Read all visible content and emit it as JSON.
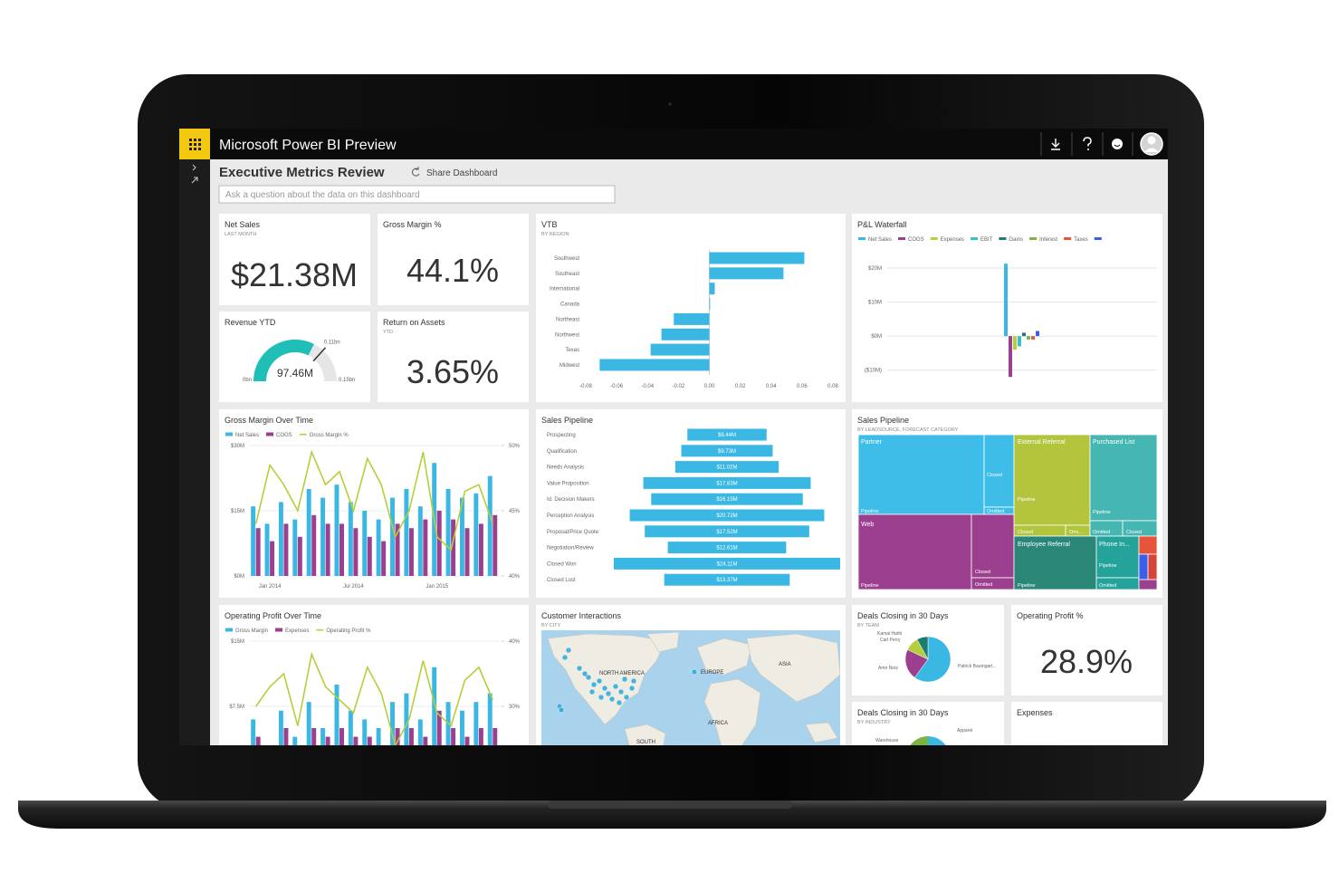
{
  "app": {
    "title": "Microsoft Power BI Preview"
  },
  "dashboard": {
    "title": "Executive Metrics Review",
    "share": "Share Dashboard",
    "question_placeholder": "Ask a question about the data on this dashboard"
  },
  "cards": [
    {
      "title": "Net Sales",
      "subtitle": "LAST MONTH",
      "value": "$21.38M"
    },
    {
      "title": "Gross Margin %",
      "value": "44.1%"
    },
    {
      "title": "Return on Assets",
      "subtitle": "YTD",
      "value": "3.65%"
    },
    {
      "title": "Operating Profit %",
      "value": "28.9%"
    },
    {
      "title": "Expenses"
    }
  ],
  "chart_data": [
    {
      "type": "bar",
      "orientation": "horizontal",
      "title": "VTB",
      "subtitle": "BY REGION",
      "categories": [
        "Southwest",
        "Southeast",
        "International",
        "Canada",
        "Northeast",
        "Northwest",
        "Texas",
        "Midwest"
      ],
      "values": [
        0.0615,
        0.048,
        0.0035,
        0.0005,
        -0.023,
        -0.031,
        -0.038,
        -0.071
      ],
      "color": "#3ab7e3",
      "xlim": [
        -0.08,
        0.08
      ],
      "xticks": [
        -0.08,
        -0.06,
        -0.04,
        -0.02,
        {
          "value": 0,
          "label": "0.00"
        },
        0.02,
        0.04,
        0.06,
        0.08
      ]
    },
    {
      "type": "column",
      "title": "P&L Waterfall",
      "categories": [
        "Net Sales",
        "COGS",
        "Expenses",
        "EBIT",
        "Gains",
        "Interest",
        "Taxes",
        null
      ],
      "values": [
        21.3,
        -12,
        -4,
        -3,
        1,
        -1,
        -1,
        1.5
      ],
      "colors": [
        "#3ab7e3",
        "#9b3f8e",
        "#b5cf3b",
        "#3bbfcf",
        "#1e7c6e",
        "#7cb341",
        "#e8543a",
        "#3b5de7"
      ],
      "ylim": [
        -13,
        24
      ],
      "grid": true,
      "yticks": [
        {
          "value": -10,
          "label": "($10M)"
        },
        {
          "value": 0,
          "label": "$0M"
        },
        {
          "value": 10,
          "label": "$10M"
        },
        {
          "value": 20,
          "label": "$20M"
        }
      ]
    },
    {
      "type": "combo",
      "title": "Gross Margin Over Time",
      "categories": [
        null,
        "Jan 2014",
        null,
        null,
        null,
        null,
        null,
        "Jul 2014",
        null,
        null,
        null,
        null,
        null,
        "Jan 2015",
        null,
        null,
        null,
        null
      ],
      "series": [
        {
          "name": "Net Sales",
          "type": "bar",
          "color": "#3ab7e3",
          "values": [
            16,
            12,
            17,
            13,
            20,
            18,
            21,
            17,
            15,
            13,
            18,
            20,
            16,
            26,
            20,
            18,
            19,
            23
          ]
        },
        {
          "name": "COGS",
          "type": "bar",
          "color": "#9b3f8e",
          "values": [
            11,
            8,
            12,
            9,
            14,
            12,
            12,
            11,
            9,
            8,
            12,
            11,
            13,
            15,
            13,
            11,
            12,
            14
          ]
        },
        {
          "name": "Gross Margin %",
          "type": "line",
          "axis": "y2",
          "color": "#b5cf3b",
          "values": [
            44,
            48.5,
            47,
            45,
            49.5,
            47,
            48,
            45,
            49,
            47,
            43,
            45,
            49.5,
            43,
            42,
            46.5,
            47,
            44
          ]
        }
      ],
      "ylim": [
        0,
        30
      ],
      "yticks": [
        {
          "value": 0,
          "label": "$0M"
        },
        {
          "value": 15,
          "label": "$15M"
        },
        {
          "value": 30,
          "label": "$30M"
        }
      ],
      "y2lim": [
        40,
        50
      ],
      "y2ticks": [
        {
          "value": 40,
          "label": "40%"
        },
        {
          "value": 45,
          "label": "45%"
        },
        {
          "value": 50,
          "label": "50%"
        }
      ]
    },
    {
      "type": "funnel",
      "title": "Sales Pipeline",
      "categories": [
        "Prospecting",
        "Qualification",
        "Needs Analysis",
        "Value Proposition",
        "Id. Decision Makers",
        "Perception Analysis",
        "Proposal/Price Quote",
        "Negotiation/Review",
        "Closed Won",
        "Closed Lost"
      ],
      "values": [
        8.44,
        9.73,
        11.02,
        17.83,
        16.15,
        20.72,
        17.52,
        12.61,
        24.11,
        13.37
      ],
      "value_labels": [
        "$8.44M",
        "$9.73M",
        "$11.02M",
        "$17.83M",
        "$16.15M",
        "$20.72M",
        "$17.52M",
        "$12.61M",
        "$24.11M",
        "$13.37M"
      ],
      "color": "#3ab7e3"
    },
    {
      "type": "combo",
      "title": "Operating Profit Over Time",
      "series": [
        {
          "name": "Gross Margin",
          "type": "bar",
          "color": "#3ab7e3",
          "values": [
            6,
            3,
            7,
            4,
            8,
            5,
            10,
            7,
            6,
            5,
            8,
            9,
            6,
            12,
            8,
            7,
            8,
            9
          ]
        },
        {
          "name": "Expenses",
          "type": "bar",
          "color": "#9b3f8e",
          "values": [
            4,
            3,
            5,
            3,
            5,
            4,
            5,
            4,
            4,
            3,
            5,
            5,
            4,
            7,
            5,
            4,
            5,
            5
          ]
        },
        {
          "name": "Operating Profit %",
          "type": "line",
          "axis": "y2",
          "color": "#b5cf3b",
          "values": [
            30,
            33,
            35,
            27,
            38,
            33,
            31,
            29,
            36,
            32,
            24,
            28,
            37,
            29,
            27,
            34,
            36,
            31
          ]
        }
      ],
      "ylim": [
        0,
        15
      ],
      "yticks": [
        {
          "value": 7.5,
          "label": "$7.5M"
        },
        {
          "value": 15,
          "label": "$15M"
        }
      ],
      "y2lim": [
        20,
        40
      ],
      "y2ticks": [
        {
          "value": 30,
          "label": "30%"
        },
        {
          "value": 40,
          "label": "40%"
        }
      ]
    },
    {
      "type": "pie",
      "title": "Deals Closing in 30 Days",
      "subtitle": "BY TEAM",
      "categories": [
        "Patrick Baumgart...",
        "Amir Netz",
        "Carl Perry",
        "Kamal Hathi"
      ],
      "values": [
        60,
        22,
        10,
        8
      ],
      "colors": [
        "#3ab7e3",
        "#9b3f8e",
        "#b5cf3b",
        "#1e7c6e"
      ]
    },
    {
      "type": "gauge",
      "title": "Revenue YTD",
      "value": 0.09746,
      "value_label": "97.46M",
      "min": {
        "value": 0,
        "label": "0bn"
      },
      "max": {
        "value": 0.15,
        "label": "0.15bn"
      },
      "target": {
        "value": 0.11,
        "label": "0.11bn"
      },
      "color": "#1fbfb8"
    }
  ],
  "treemap": {
    "title": "Sales Pipeline",
    "subtitle": "BY LEADSOURCE, FORECAST CATEGORY",
    "groups": [
      {
        "label": "Partner",
        "parts": [
          "Closed",
          "Pipeline",
          "Omitted"
        ]
      },
      {
        "label": "External Referral",
        "parts": [
          "Pipeline",
          "Closed",
          "Omi..."
        ]
      },
      {
        "label": "Purchased List",
        "parts": [
          "Pipeline",
          "Omitted",
          "Closed"
        ]
      },
      {
        "label": "Web",
        "parts": [
          "Pipeline",
          "Closed",
          "Omitted"
        ]
      },
      {
        "label": "Employee Referral",
        "parts": [
          "Pipeline"
        ]
      },
      {
        "label": "Phone In...",
        "parts": [
          "Pipeline",
          "Omitted"
        ]
      }
    ]
  },
  "map": {
    "title": "Customer Interactions",
    "subtitle": "BY CITY",
    "labels": [
      "NORTH AMERICA",
      "EUROPE",
      "ASIA",
      "AFRICA",
      "SOUTH"
    ]
  },
  "industry": {
    "title": "Deals Closing in 30 Days",
    "subtitle": "BY INDUSTRY",
    "labels": [
      "Apparel",
      "Warehouse"
    ]
  }
}
